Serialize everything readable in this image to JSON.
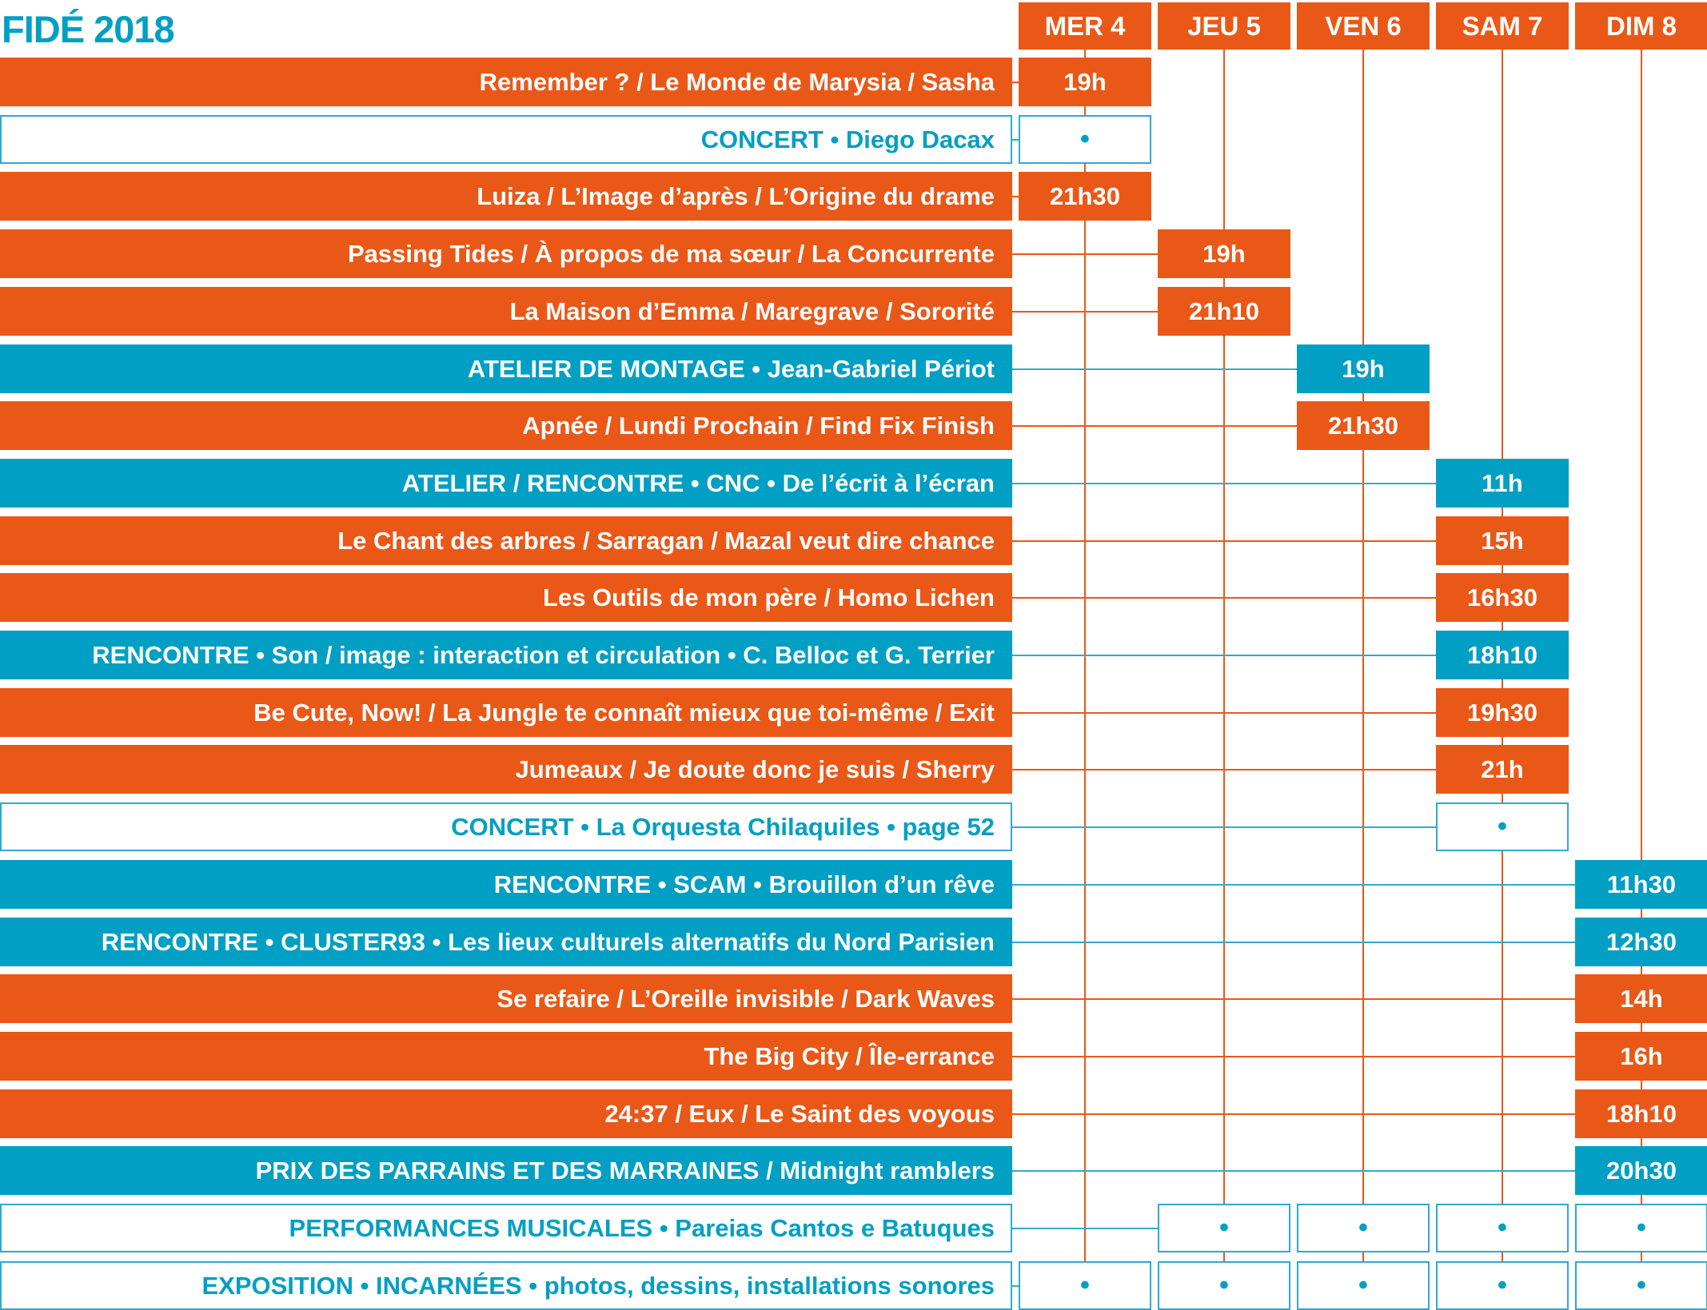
{
  "title": "FIDÉ 2018",
  "days": [
    "MER 4",
    "JEU 5",
    "VEN 6",
    "SAM 7",
    "DIM 8"
  ],
  "dot": "•",
  "colors": {
    "orange": "#ea5818",
    "cyan": "#009fc3",
    "cyan_line": "#2fa9cf",
    "white": "#ffffff"
  },
  "rows": [
    {
      "label": "Remember ? / Le Monde de Marysia / Sasha",
      "style": "orange",
      "slots": [
        {
          "day": 0,
          "text": "19h",
          "style": "orange"
        }
      ]
    },
    {
      "label": "CONCERT • Diego Dacax",
      "style": "outline",
      "slots": [
        {
          "day": 0,
          "text": "•",
          "style": "outline"
        }
      ]
    },
    {
      "label": "Luiza / L’Image d’après / L’Origine du drame",
      "style": "orange",
      "slots": [
        {
          "day": 0,
          "text": "21h30",
          "style": "orange"
        }
      ]
    },
    {
      "label": "Passing Tides / À propos de ma sœur / La Concurrente",
      "style": "orange",
      "slots": [
        {
          "day": 1,
          "text": "19h",
          "style": "orange"
        }
      ]
    },
    {
      "label": "La Maison d’Emma / Maregrave / Sororité",
      "style": "orange",
      "slots": [
        {
          "day": 1,
          "text": "21h10",
          "style": "orange"
        }
      ]
    },
    {
      "label": "ATELIER DE MONTAGE • Jean-Gabriel Périot",
      "style": "cyan",
      "slots": [
        {
          "day": 2,
          "text": "19h",
          "style": "cyan"
        }
      ]
    },
    {
      "label": "Apnée / Lundi Prochain / Find Fix Finish",
      "style": "orange",
      "slots": [
        {
          "day": 2,
          "text": "21h30",
          "style": "orange"
        }
      ]
    },
    {
      "label": "ATELIER / RENCONTRE • CNC • De l’écrit à l’écran",
      "style": "cyan",
      "slots": [
        {
          "day": 3,
          "text": "11h",
          "style": "cyan"
        }
      ]
    },
    {
      "label": "Le Chant des arbres / Sarragan / Mazal veut dire chance",
      "style": "orange",
      "slots": [
        {
          "day": 3,
          "text": "15h",
          "style": "orange"
        }
      ]
    },
    {
      "label": "Les Outils de mon père / Homo Lichen",
      "style": "orange",
      "slots": [
        {
          "day": 3,
          "text": "16h30",
          "style": "orange"
        }
      ]
    },
    {
      "label": "RENCONTRE • Son / image : interaction et circulation • C. Belloc et G. Terrier",
      "style": "cyan",
      "slots": [
        {
          "day": 3,
          "text": "18h10",
          "style": "cyan"
        }
      ]
    },
    {
      "label": "Be Cute, Now! / La Jungle te connaît mieux que toi-même / Exit",
      "style": "orange",
      "slots": [
        {
          "day": 3,
          "text": "19h30",
          "style": "orange"
        }
      ]
    },
    {
      "label": "Jumeaux / Je doute donc je suis / Sherry",
      "style": "orange",
      "slots": [
        {
          "day": 3,
          "text": "21h",
          "style": "orange"
        }
      ]
    },
    {
      "label": "CONCERT • La Orquesta Chilaquiles • page 52",
      "style": "outline",
      "slots": [
        {
          "day": 3,
          "text": "•",
          "style": "outline"
        }
      ]
    },
    {
      "label": "RENCONTRE • SCAM • Brouillon d’un rêve",
      "style": "cyan",
      "slots": [
        {
          "day": 4,
          "text": "11h30",
          "style": "cyan"
        }
      ]
    },
    {
      "label": "RENCONTRE • CLUSTER93 • Les lieux culturels alternatifs du Nord Parisien",
      "style": "cyan",
      "slots": [
        {
          "day": 4,
          "text": "12h30",
          "style": "cyan"
        }
      ]
    },
    {
      "label": "Se refaire / L’Oreille invisible / Dark Waves",
      "style": "orange",
      "slots": [
        {
          "day": 4,
          "text": "14h",
          "style": "orange"
        }
      ]
    },
    {
      "label": "The Big City / Île-errance",
      "style": "orange",
      "slots": [
        {
          "day": 4,
          "text": "16h",
          "style": "orange"
        }
      ]
    },
    {
      "label": "24:37 / Eux / Le Saint des voyous",
      "style": "orange",
      "slots": [
        {
          "day": 4,
          "text": "18h10",
          "style": "orange"
        }
      ]
    },
    {
      "label": "PRIX DES PARRAINS ET DES MARRAINES / Midnight ramblers",
      "style": "cyan",
      "slots": [
        {
          "day": 4,
          "text": "20h30",
          "style": "cyan"
        }
      ]
    },
    {
      "label": "PERFORMANCES MUSICALES • Pareias Cantos e Batuques",
      "style": "outline",
      "slots": [
        {
          "day": 1,
          "text": "•",
          "style": "outline"
        },
        {
          "day": 2,
          "text": "•",
          "style": "outline"
        },
        {
          "day": 3,
          "text": "•",
          "style": "outline"
        },
        {
          "day": 4,
          "text": "•",
          "style": "outline"
        }
      ]
    },
    {
      "label": "EXPOSITION • INCARNÉES • photos, dessins, installations sonores",
      "style": "outline",
      "slots": [
        {
          "day": 0,
          "text": "•",
          "style": "outline"
        },
        {
          "day": 1,
          "text": "•",
          "style": "outline"
        },
        {
          "day": 2,
          "text": "•",
          "style": "outline"
        },
        {
          "day": 3,
          "text": "•",
          "style": "outline"
        },
        {
          "day": 4,
          "text": "•",
          "style": "outline"
        }
      ]
    }
  ]
}
